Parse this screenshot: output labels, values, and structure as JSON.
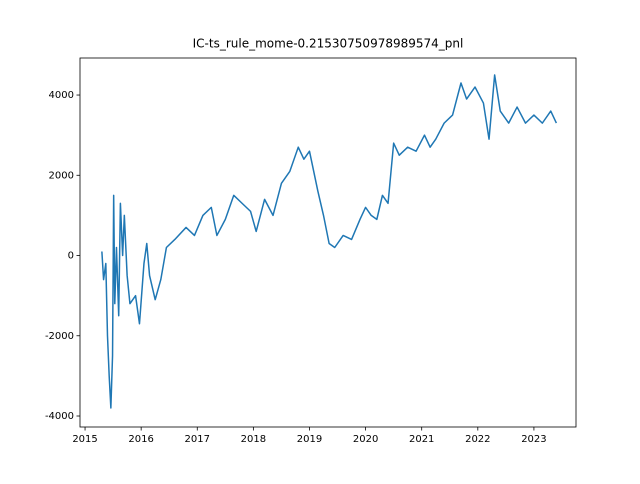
{
  "chart_data": {
    "type": "line",
    "title": "IC-ts_rule_mome-0.21530750978989574_pnl",
    "x": [
      2015.3,
      2015.33,
      2015.37,
      2015.4,
      2015.43,
      2015.46,
      2015.49,
      2015.51,
      2015.53,
      2015.56,
      2015.6,
      2015.63,
      2015.67,
      2015.7,
      2015.75,
      2015.8,
      2015.9,
      2015.97,
      2016.05,
      2016.1,
      2016.15,
      2016.25,
      2016.35,
      2016.45,
      2016.6,
      2016.8,
      2016.95,
      2017.1,
      2017.25,
      2017.35,
      2017.5,
      2017.65,
      2017.8,
      2017.95,
      2018.05,
      2018.2,
      2018.35,
      2018.5,
      2018.65,
      2018.8,
      2018.9,
      2019.0,
      2019.15,
      2019.25,
      2019.35,
      2019.45,
      2019.6,
      2019.75,
      2019.9,
      2020.0,
      2020.1,
      2020.2,
      2020.3,
      2020.4,
      2020.5,
      2020.6,
      2020.75,
      2020.9,
      2021.05,
      2021.15,
      2021.25,
      2021.4,
      2021.55,
      2021.7,
      2021.8,
      2021.95,
      2022.1,
      2022.2,
      2022.3,
      2022.4,
      2022.55,
      2022.7,
      2022.85,
      2023.0,
      2023.15,
      2023.3,
      2023.4
    ],
    "values": [
      100,
      -600,
      -200,
      -2000,
      -3000,
      -3800,
      -2500,
      1500,
      -1200,
      200,
      -1500,
      1300,
      0,
      1000,
      -500,
      -1200,
      -1000,
      -1700,
      -200,
      300,
      -500,
      -1100,
      -600,
      200,
      400,
      700,
      500,
      1000,
      1200,
      500,
      900,
      1500,
      1300,
      1100,
      600,
      1400,
      1000,
      1800,
      2100,
      2700,
      2400,
      2600,
      1600,
      1000,
      300,
      200,
      500,
      400,
      900,
      1200,
      1000,
      900,
      1500,
      1300,
      2800,
      2500,
      2700,
      2600,
      3000,
      2700,
      2900,
      3300,
      3500,
      4300,
      3900,
      4200,
      3800,
      2900,
      4500,
      3600,
      3300,
      3700,
      3300,
      3500,
      3300,
      3600,
      3300
    ],
    "color": "#1f77b4",
    "xlim": [
      2014.91,
      2023.75
    ],
    "xticks": [
      2015,
      2016,
      2017,
      2018,
      2019,
      2020,
      2021,
      2022,
      2023
    ],
    "ylim": [
      -4274,
      4923
    ],
    "yticks": [
      -4000,
      -2000,
      0,
      2000,
      4000
    ]
  }
}
